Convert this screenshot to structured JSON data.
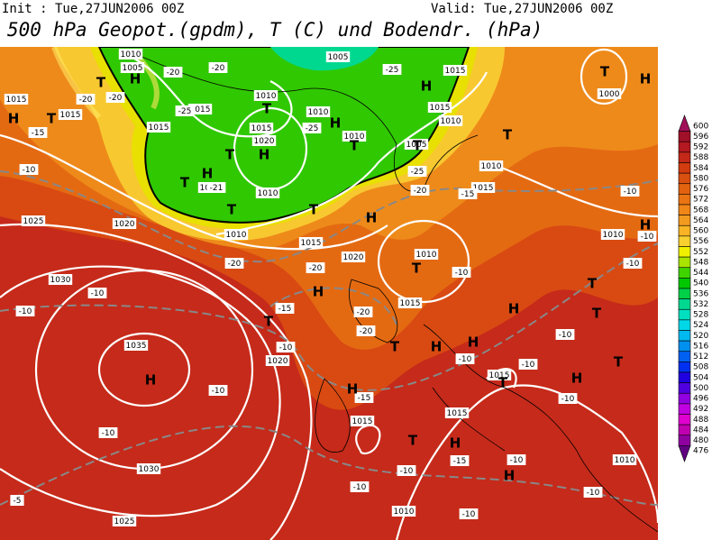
{
  "header": {
    "init": "Init : Tue,27JUN2006 00Z",
    "valid": "Valid: Tue,27JUN2006 00Z",
    "title": "500 hPa Geopot.(gpdm), T (C) und Bodendr. (hPa)"
  },
  "colorbar": {
    "values": [
      600,
      596,
      592,
      588,
      584,
      580,
      576,
      572,
      568,
      564,
      560,
      556,
      552,
      548,
      544,
      540,
      536,
      532,
      528,
      524,
      520,
      516,
      512,
      508,
      504,
      500,
      496,
      492,
      488,
      484,
      480,
      476
    ],
    "colors": [
      "#a0105a",
      "#a01028",
      "#b41820",
      "#c42818",
      "#d23c10",
      "#da5010",
      "#e26210",
      "#ea7412",
      "#f08618",
      "#f29a20",
      "#f8b424",
      "#f8d030",
      "#f0f000",
      "#a8e400",
      "#40d400",
      "#00c800",
      "#00d048",
      "#00d890",
      "#00e0c0",
      "#00d8e8",
      "#00b8f0",
      "#0090f0",
      "#0060f0",
      "#0030f0",
      "#2000e0",
      "#5000e0",
      "#9000e0",
      "#c000e0",
      "#e000d0",
      "#c000b0",
      "#9000a0",
      "#600080"
    ]
  },
  "map": {
    "isobar_labels": [
      1010,
      1005,
      1005,
      1015,
      1015,
      1015,
      1015,
      1010,
      1010,
      1015,
      1010,
      1015,
      1020,
      1010,
      1005,
      1015,
      1010,
      1015,
      1005,
      1010,
      1025,
      1020,
      1010,
      1015,
      1020,
      1010,
      1010,
      1030,
      1015,
      1020,
      1035,
      1015,
      1015,
      1015,
      1030,
      1010,
      1025,
      1010,
      1000
    ],
    "temperature_labels": [
      -20,
      -20,
      -20,
      -20,
      -25,
      -15,
      -25,
      -25,
      -25,
      -20,
      -15,
      -10,
      -21,
      -10,
      -20,
      -20,
      -10,
      -10,
      -10,
      -10,
      -10,
      -15,
      -20,
      -20,
      -10,
      -10,
      -10,
      -10,
      -10,
      -10,
      -15,
      -10,
      -10,
      -10,
      -10,
      -10,
      -15,
      -5,
      -10
    ],
    "centers": [
      "H",
      "T",
      "H",
      "T",
      "H",
      "T",
      "H",
      "T",
      "H",
      "T",
      "T",
      "H",
      "T",
      "T",
      "T",
      "H",
      "T",
      "H",
      "T",
      "H",
      "T",
      "H",
      "T",
      "T",
      "H",
      "T",
      "H",
      "H",
      "T",
      "T",
      "T",
      "H",
      "H",
      "T",
      "H",
      "H",
      "H"
    ]
  }
}
